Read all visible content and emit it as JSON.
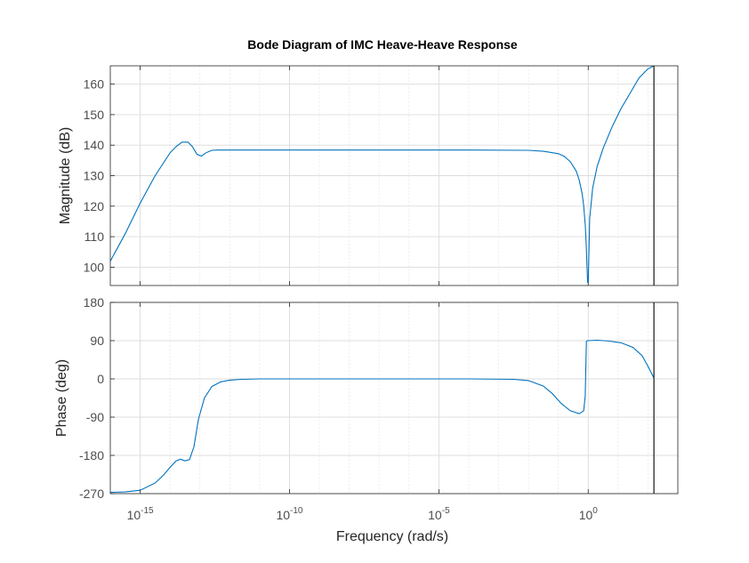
{
  "chart_data": {
    "type": "line",
    "title": "Bode Diagram of IMC Heave-Heave Response",
    "xlabel": "Frequency  (rad/s)",
    "x_scale": "log10",
    "x_exponent_range": [
      -16,
      3
    ],
    "x_ticks": [
      {
        "base": "10",
        "exp": "-15",
        "value": -15
      },
      {
        "base": "10",
        "exp": "-10",
        "value": -10
      },
      {
        "base": "10",
        "exp": "-5",
        "value": -5
      },
      {
        "base": "10",
        "exp": "0",
        "value": 0
      }
    ],
    "grid": true,
    "cursor_line_exponent": 2.2,
    "line_color": "#0072bd",
    "subplots": [
      {
        "name": "magnitude",
        "ylabel": "Magnitude (dB)",
        "ylim": [
          94,
          166
        ],
        "yticks": [
          "100",
          "110",
          "120",
          "130",
          "140",
          "150",
          "160"
        ],
        "series": [
          {
            "x_exponent": [
              -16,
              -15.5,
              -15,
              -14.5,
              -14,
              -13.8,
              -13.6,
              -13.4,
              -13.25,
              -13.1,
              -12.95,
              -12.8,
              -12.6,
              -12.4,
              -12,
              -11,
              -10,
              -8,
              -6,
              -4,
              -2,
              -1.5,
              -1,
              -0.8,
              -0.6,
              -0.4,
              -0.3,
              -0.2,
              -0.15,
              -0.1,
              -0.07,
              -0.04,
              -0.02,
              0,
              0.05,
              0.15,
              0.3,
              0.5,
              0.8,
              1.1,
              1.4,
              1.7,
              2.0,
              2.2
            ],
            "y": [
              102,
              111,
              121,
              130,
              137.5,
              139.5,
              141,
              141,
              139.5,
              137,
              136.4,
              137.5,
              138.3,
              138.4,
              138.4,
              138.4,
              138.4,
              138.4,
              138.4,
              138.4,
              138.3,
              138,
              137.2,
              136.3,
              134.6,
              131.5,
              128.5,
              124,
              120,
              114,
              108,
              100,
              95,
              95,
              116,
              126,
              133,
              139,
              146,
              152,
              157,
              162,
              165,
              166
            ]
          }
        ]
      },
      {
        "name": "phase",
        "ylabel": "Phase (deg)",
        "ylim": [
          -270,
          180
        ],
        "yticks": [
          "180",
          "90",
          "0",
          "-90",
          "-180",
          "-270"
        ],
        "series": [
          {
            "x_exponent": [
              -16,
              -15.5,
              -15,
              -14.5,
              -14.2,
              -14,
              -13.8,
              -13.65,
              -13.5,
              -13.35,
              -13.2,
              -13.05,
              -12.85,
              -12.6,
              -12.3,
              -12,
              -11.6,
              -11,
              -10,
              -8,
              -6,
              -4,
              -2.5,
              -2,
              -1.5,
              -1.2,
              -0.9,
              -0.6,
              -0.3,
              -0.15,
              -0.1,
              -0.08,
              -0.06,
              -0.04,
              -0.02,
              0,
              0.3,
              0.7,
              1.1,
              1.5,
              1.8,
              2.0,
              2.2
            ],
            "y": [
              -267,
              -266,
              -262,
              -245,
              -225,
              -208,
              -193,
              -189,
              -193,
              -190,
              -160,
              -95,
              -45,
              -18,
              -7,
              -3,
              -1,
              0,
              0,
              0,
              0,
              0,
              -1,
              -4,
              -17,
              -35,
              -58,
              -75,
              -82,
              -75,
              -40,
              30,
              88,
              90,
              90,
              90,
              91,
              89,
              85,
              74,
              55,
              30,
              2
            ]
          }
        ]
      }
    ]
  }
}
